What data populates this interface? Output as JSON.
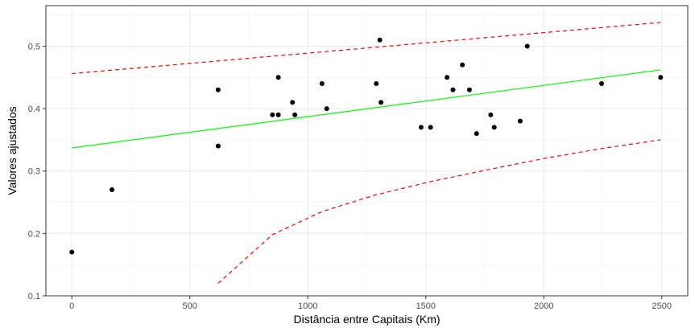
{
  "chart_data": {
    "type": "scatter",
    "xlabel": "Distância entre Capitais (Km)",
    "ylabel": "Valores ajustados",
    "xlim": [
      -110,
      2610
    ],
    "ylim": [
      0.1,
      0.565
    ],
    "x_ticks": [
      0,
      500,
      1000,
      1500,
      2000,
      2500
    ],
    "x_tick_labels": [
      "0",
      "500",
      "1000",
      "1500",
      "2000",
      "2500"
    ],
    "y_ticks": [
      0.1,
      0.2,
      0.3,
      0.4,
      0.5
    ],
    "y_tick_labels": [
      "0.1",
      "0.2",
      "0.3",
      "0.4",
      "0.5"
    ],
    "grid": true,
    "points": {
      "x": [
        0,
        170,
        620,
        620,
        850,
        875,
        875,
        935,
        945,
        1060,
        1080,
        1290,
        1305,
        1310,
        1480,
        1520,
        1590,
        1615,
        1655,
        1685,
        1715,
        1775,
        1790,
        1900,
        1930,
        2245,
        2495
      ],
      "y": [
        0.17,
        0.27,
        0.34,
        0.43,
        0.39,
        0.45,
        0.39,
        0.41,
        0.39,
        0.44,
        0.4,
        0.44,
        0.51,
        0.41,
        0.37,
        0.37,
        0.45,
        0.43,
        0.47,
        0.43,
        0.36,
        0.39,
        0.37,
        0.38,
        0.5,
        0.44,
        0.45
      ],
      "color": "#000000"
    },
    "series": [
      {
        "kind": "fitted-line",
        "style": "solid",
        "color": "#00ff00",
        "x": [
          0,
          2495
        ],
        "y": [
          0.337,
          0.462
        ]
      },
      {
        "kind": "upper-bound",
        "style": "dashed",
        "color": "#ff0000",
        "x": [
          0,
          2495
        ],
        "y": [
          0.456,
          0.538
        ]
      },
      {
        "kind": "lower-bound",
        "style": "dashed",
        "color": "#ff0000",
        "x": [
          620,
          850,
          1060,
          1290,
          1520,
          1775,
          2000,
          2245,
          2495
        ],
        "y": [
          0.12,
          0.198,
          0.235,
          0.262,
          0.283,
          0.303,
          0.32,
          0.336,
          0.35
        ]
      }
    ]
  }
}
